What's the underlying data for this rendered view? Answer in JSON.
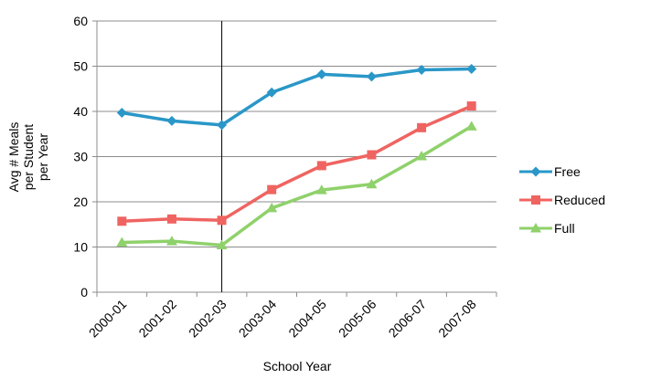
{
  "chart_data": {
    "type": "line",
    "title": "",
    "xlabel": "School Year",
    "ylabel_lines": [
      "Avg # Meals",
      "per Student",
      "per Year"
    ],
    "categories": [
      "2000-01",
      "2001-02",
      "2002-03",
      "2003-04",
      "2004-05",
      "2005-06",
      "2006-07",
      "2007-08"
    ],
    "ylim": [
      0,
      60
    ],
    "yticks": [
      0,
      10,
      20,
      30,
      40,
      50,
      60
    ],
    "grid": true,
    "legend_position": "right",
    "vertical_marker_category": "2002-03",
    "series": [
      {
        "name": "Free",
        "color": "#2a97c8",
        "marker": "diamond",
        "values": [
          39.7,
          37.9,
          37.0,
          44.2,
          48.2,
          47.7,
          49.2,
          49.4
        ]
      },
      {
        "name": "Reduced",
        "color": "#ef6461",
        "marker": "square",
        "values": [
          15.7,
          16.2,
          15.9,
          22.7,
          28.0,
          30.4,
          36.4,
          41.2
        ]
      },
      {
        "name": "Full",
        "color": "#8fd16b",
        "marker": "triangle",
        "values": [
          11.0,
          11.3,
          10.4,
          18.6,
          22.6,
          23.9,
          30.1,
          36.7
        ]
      }
    ]
  }
}
